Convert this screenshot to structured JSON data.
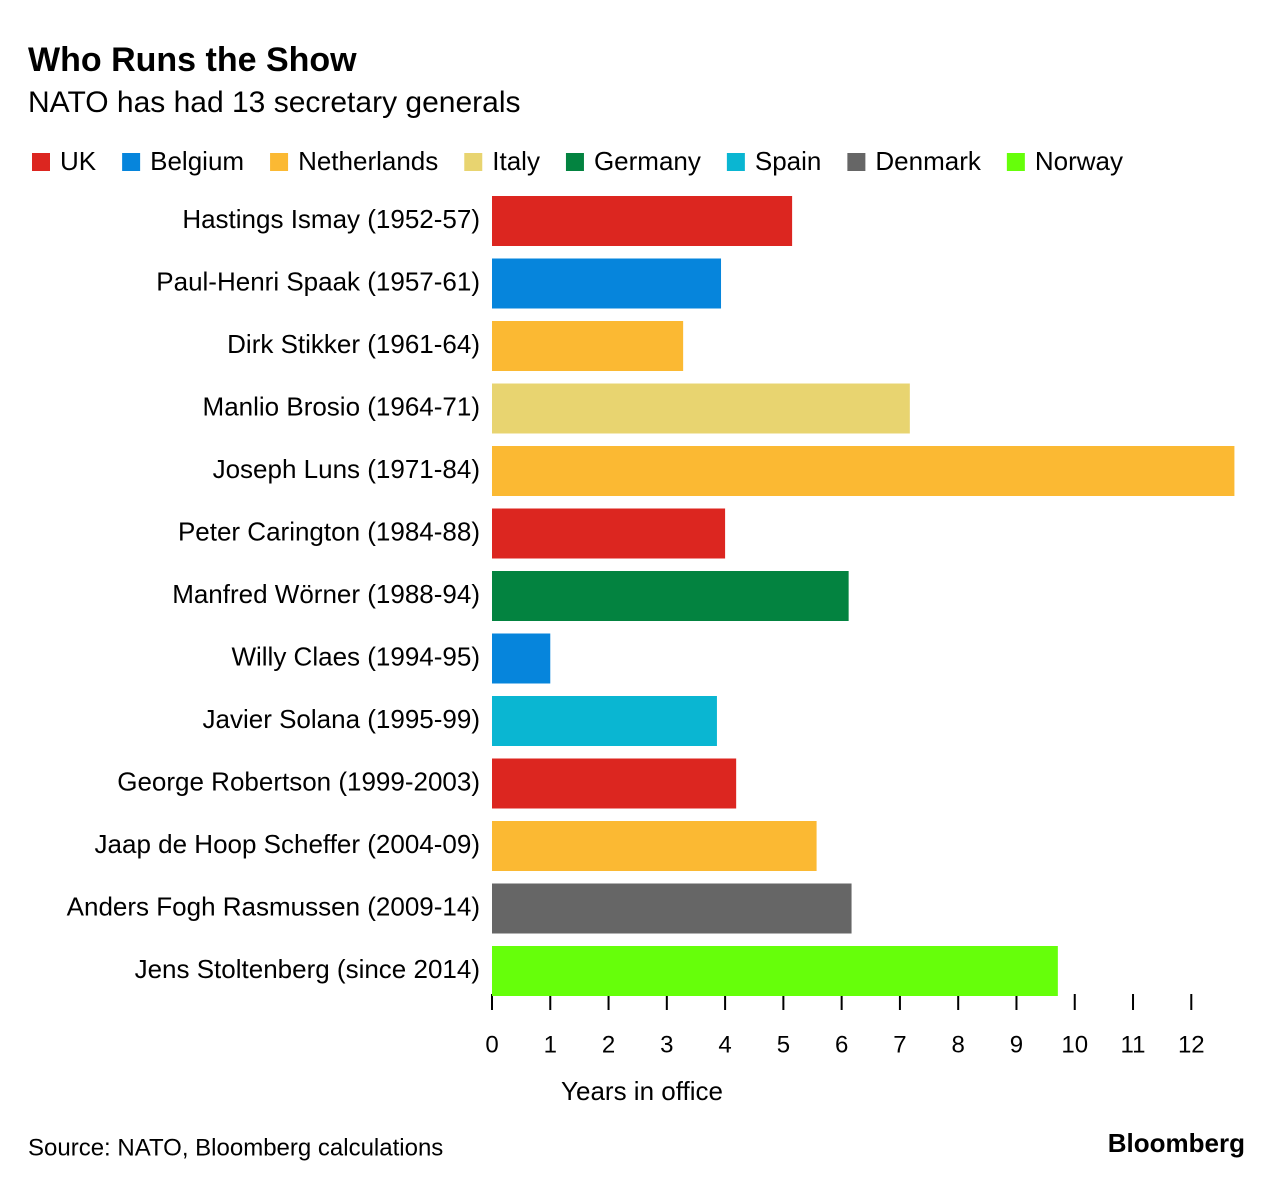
{
  "chart_data": {
    "type": "hbar",
    "title": "Who Runs the Show",
    "subtitle": "NATO has had 13 secretary generals",
    "legend": [
      {
        "name": "UK",
        "color": "#dc2620"
      },
      {
        "name": "Belgium",
        "color": "#0685dc"
      },
      {
        "name": "Netherlands",
        "color": "#fbb933"
      },
      {
        "name": "Italy",
        "color": "#e8d470"
      },
      {
        "name": "Germany",
        "color": "#038340"
      },
      {
        "name": "Spain",
        "color": "#0ab6d2"
      },
      {
        "name": "Denmark",
        "color": "#666666"
      },
      {
        "name": "Norway",
        "color": "#66ff0a"
      }
    ],
    "categories": [
      "Hastings Ismay (1952-57)",
      "Paul-Henri Spaak (1957-61)",
      "Dirk Stikker (1961-64)",
      "Manlio Brosio (1964-71)",
      "Joseph Luns (1971-84)",
      "Peter Carington (1984-88)",
      "Manfred Wörner (1988-94)",
      "Willy Claes (1994-95)",
      "Javier Solana (1995-99)",
      "George Robertson (1999-2003)",
      "Jaap de Hoop Scheffer (2004-09)",
      "Anders Fogh Rasmussen (2009-14)",
      "Jens Stoltenberg (since 2014)"
    ],
    "values": [
      5.15,
      3.93,
      3.28,
      7.17,
      12.74,
      4.0,
      6.12,
      1.0,
      3.86,
      4.19,
      5.57,
      6.17,
      9.71
    ],
    "colors": [
      "#dc2620",
      "#0685dc",
      "#fbb933",
      "#e8d470",
      "#fbb933",
      "#dc2620",
      "#038340",
      "#0685dc",
      "#0ab6d2",
      "#dc2620",
      "#fbb933",
      "#666666",
      "#66ff0a"
    ],
    "xlim": [
      0,
      12.75
    ],
    "xticks": [
      0,
      1,
      2,
      3,
      4,
      5,
      6,
      7,
      8,
      9,
      10,
      11,
      12
    ],
    "xlabel": "Years in office",
    "source": "Source: NATO, Bloomberg calculations",
    "brand": "Bloomberg"
  }
}
